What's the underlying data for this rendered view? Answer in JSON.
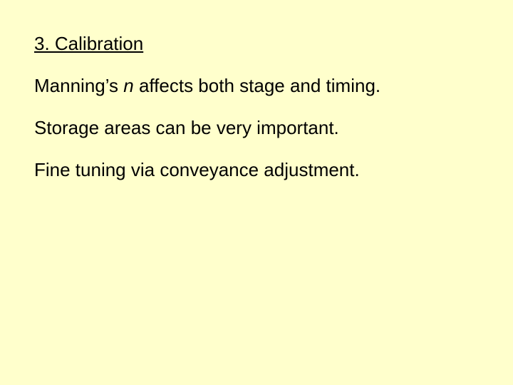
{
  "slide": {
    "background_color": "#ffffcc",
    "text_color": "#000000",
    "font_family": "Arial, Helvetica, sans-serif",
    "heading_fontsize": 26,
    "body_fontsize": 26,
    "heading": "3.  Calibration",
    "line1_pre": "Manning’s ",
    "line1_italic": "n",
    "line1_post": " affects both stage and timing.",
    "line2": "Storage areas can be very important.",
    "line3": "Fine tuning via conveyance adjustment."
  }
}
